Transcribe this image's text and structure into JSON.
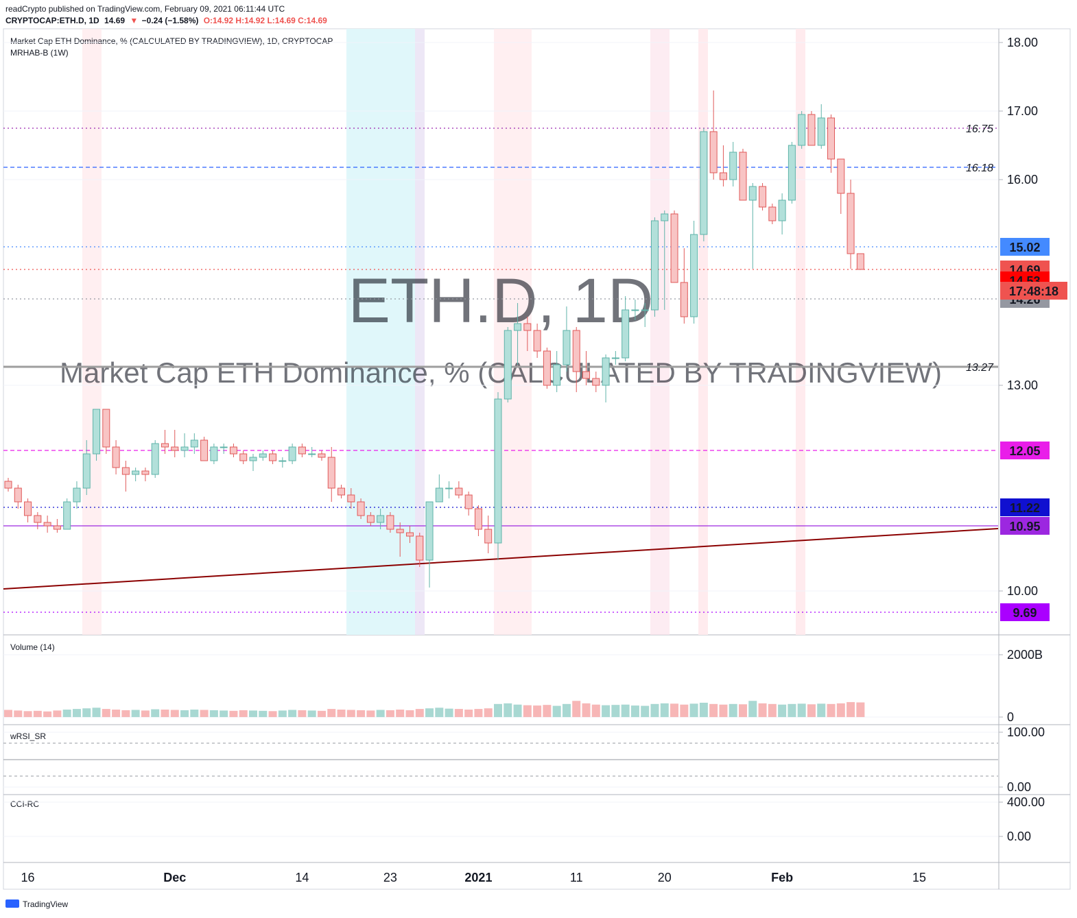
{
  "header": {
    "publisher": "readCrypto published on TradingView.com, February 09, 2021 06:11:44 UTC",
    "symbol": "CRYPTOCAP:ETH.D, 1D",
    "last": "14.69",
    "arrow": "▼",
    "change": "−0.24 (−1.58%)",
    "ohlc": "O:14.92 H:14.92 L:14.69 C:14.69"
  },
  "footer": "TradingView",
  "chart_data": {
    "type": "candlestick",
    "title": "Market Cap ETH Dominance, % (CALCULATED BY TRADINGVIEW), 1D, CRYPTOCAP",
    "indicator": "MRHAB-B (1W)",
    "watermark": "ETH.D, 1D",
    "watermark_sub": "Market Cap ETH Dominance, % (CALCULATED BY TRADINGVIEW)",
    "up_color": "#5fb3a9",
    "down_color": "#e05a5a",
    "ylim": [
      9.37,
      18.2
    ],
    "yticks": [
      {
        "value": 18,
        "label": "18.00"
      },
      {
        "value": 17,
        "label": "17.00"
      },
      {
        "value": 16,
        "label": "16.00"
      },
      {
        "value": 13,
        "label": "13.00"
      },
      {
        "value": 10,
        "label": "10.00"
      }
    ],
    "xlabels": [
      "16",
      "Dec",
      "14",
      "23",
      "2021",
      "11",
      "20",
      "Feb",
      "15"
    ],
    "countdown": "17:48:18",
    "trendline": {
      "start": 10.03,
      "end": 10.91,
      "color": "#8b0000"
    },
    "levels": [
      {
        "value": 16.75,
        "color": "#9c27b0",
        "style": "dotted",
        "inline": true
      },
      {
        "value": 16.18,
        "color": "#2962ff",
        "style": "dashed",
        "inline": true
      },
      {
        "value": 15.02,
        "color": "#448aff",
        "style": "dotted",
        "badge": true
      },
      {
        "value": 14.69,
        "color": "#ef5350",
        "style": "dotted",
        "badge": true
      },
      {
        "value": 14.53,
        "color": "#ff0000",
        "style": "none",
        "badge": true
      },
      {
        "value": 14.26,
        "color": "#9598a1",
        "style": "dotted",
        "badge": true
      },
      {
        "value": 13.27,
        "color": "#9e9e9e",
        "style": "solid",
        "inline": true
      },
      {
        "value": 12.05,
        "color": "#e91ee9",
        "style": "dashed",
        "badge": true
      },
      {
        "value": 11.22,
        "color": "#1010d0",
        "style": "dotted",
        "badge": true
      },
      {
        "value": 10.95,
        "color": "#9c27e0",
        "style": "solid",
        "badge": true
      },
      {
        "value": 9.69,
        "color": "#aa00ff",
        "style": "dotted",
        "badge": true
      }
    ],
    "candles": [
      [
        11.6,
        11.65,
        11.45,
        11.5
      ],
      [
        11.5,
        11.55,
        11.2,
        11.3
      ],
      [
        11.3,
        11.35,
        11.0,
        11.1
      ],
      [
        11.1,
        11.15,
        10.9,
        11.0
      ],
      [
        11.0,
        11.1,
        10.85,
        10.95
      ],
      [
        10.95,
        11.05,
        10.85,
        10.9
      ],
      [
        10.9,
        11.35,
        10.9,
        11.3
      ],
      [
        11.3,
        11.6,
        11.2,
        11.5
      ],
      [
        11.5,
        12.2,
        11.4,
        12.0
      ],
      [
        12.0,
        12.65,
        11.9,
        12.65
      ],
      [
        12.65,
        12.65,
        12.0,
        12.1
      ],
      [
        12.1,
        12.2,
        11.7,
        11.8
      ],
      [
        11.8,
        11.9,
        11.45,
        11.7
      ],
      [
        11.7,
        11.8,
        11.6,
        11.75
      ],
      [
        11.75,
        11.8,
        11.6,
        11.7
      ],
      [
        11.7,
        12.2,
        11.65,
        12.15
      ],
      [
        12.15,
        12.35,
        12.0,
        12.1
      ],
      [
        12.1,
        12.35,
        11.95,
        12.05
      ],
      [
        12.05,
        12.3,
        11.95,
        12.1
      ],
      [
        12.1,
        12.3,
        12.0,
        12.2
      ],
      [
        12.2,
        12.25,
        11.9,
        11.9
      ],
      [
        11.9,
        12.15,
        11.85,
        12.1
      ],
      [
        12.1,
        12.15,
        12.0,
        12.1
      ],
      [
        12.1,
        12.15,
        11.95,
        12.0
      ],
      [
        12.0,
        12.05,
        11.85,
        11.9
      ],
      [
        11.9,
        12.0,
        11.75,
        11.95
      ],
      [
        11.95,
        12.05,
        11.9,
        12.0
      ],
      [
        12.0,
        12.05,
        11.85,
        11.9
      ],
      [
        11.9,
        11.95,
        11.8,
        11.9
      ],
      [
        11.9,
        12.15,
        11.85,
        12.1
      ],
      [
        12.1,
        12.15,
        11.95,
        12.0
      ],
      [
        12.0,
        12.1,
        11.95,
        12.0
      ],
      [
        12.0,
        12.05,
        11.9,
        11.95
      ],
      [
        11.95,
        12.1,
        11.3,
        11.5
      ],
      [
        11.5,
        11.55,
        11.35,
        11.4
      ],
      [
        11.4,
        11.5,
        11.2,
        11.3
      ],
      [
        11.3,
        11.35,
        11.05,
        11.1
      ],
      [
        11.1,
        11.15,
        10.95,
        11.0
      ],
      [
        11.0,
        11.2,
        10.9,
        11.1
      ],
      [
        11.1,
        11.15,
        10.85,
        10.9
      ],
      [
        10.9,
        11.0,
        10.5,
        10.85
      ],
      [
        10.85,
        10.95,
        10.7,
        10.8
      ],
      [
        10.8,
        10.85,
        10.35,
        10.45
      ],
      [
        10.45,
        11.3,
        10.05,
        11.3
      ],
      [
        11.3,
        11.7,
        11.3,
        11.5
      ],
      [
        11.5,
        11.6,
        11.35,
        11.5
      ],
      [
        11.5,
        11.6,
        11.35,
        11.4
      ],
      [
        11.4,
        11.45,
        11.1,
        11.2
      ],
      [
        11.2,
        11.25,
        10.8,
        10.9
      ],
      [
        10.9,
        11.1,
        10.55,
        10.7
      ],
      [
        10.7,
        12.9,
        10.45,
        12.8
      ],
      [
        12.8,
        13.85,
        12.75,
        13.8
      ],
      [
        13.8,
        14.2,
        13.3,
        13.9
      ],
      [
        13.9,
        14.0,
        13.5,
        13.8
      ],
      [
        13.8,
        13.9,
        13.4,
        13.5
      ],
      [
        13.5,
        13.55,
        12.95,
        13.0
      ],
      [
        13.0,
        13.5,
        12.9,
        13.3
      ],
      [
        13.3,
        14.15,
        13.2,
        13.8
      ],
      [
        13.8,
        13.85,
        12.9,
        13.2
      ],
      [
        13.2,
        13.5,
        13.0,
        13.1
      ],
      [
        13.1,
        13.2,
        12.9,
        13.0
      ],
      [
        13.0,
        13.45,
        12.75,
        13.4
      ],
      [
        13.4,
        13.5,
        13.3,
        13.4
      ],
      [
        13.4,
        14.3,
        13.35,
        14.1
      ],
      [
        14.1,
        14.25,
        13.95,
        14.1
      ],
      [
        14.1,
        14.2,
        13.85,
        14.1
      ],
      [
        14.1,
        15.45,
        14.0,
        15.4
      ],
      [
        15.4,
        15.55,
        14.1,
        15.5
      ],
      [
        15.5,
        15.55,
        14.5,
        14.5
      ],
      [
        14.5,
        15.0,
        13.9,
        14.0
      ],
      [
        14.0,
        15.4,
        13.9,
        15.2
      ],
      [
        15.2,
        16.75,
        15.1,
        16.7
      ],
      [
        16.7,
        17.3,
        16.0,
        16.1
      ],
      [
        16.1,
        16.5,
        15.9,
        16.0
      ],
      [
        16.0,
        16.55,
        15.9,
        16.4
      ],
      [
        16.4,
        16.45,
        15.7,
        15.7
      ],
      [
        15.7,
        15.95,
        14.7,
        15.9
      ],
      [
        15.9,
        15.95,
        15.55,
        15.6
      ],
      [
        15.6,
        15.65,
        15.35,
        15.4
      ],
      [
        15.4,
        15.8,
        15.2,
        15.7
      ],
      [
        15.7,
        16.55,
        15.65,
        16.5
      ],
      [
        16.5,
        17.0,
        16.45,
        16.95
      ],
      [
        16.95,
        17.0,
        16.5,
        16.5
      ],
      [
        16.5,
        17.1,
        16.45,
        16.9
      ],
      [
        16.9,
        16.95,
        16.1,
        16.3
      ],
      [
        16.3,
        16.3,
        15.5,
        15.8
      ],
      [
        15.8,
        16.0,
        14.7,
        14.92
      ],
      [
        14.92,
        14.92,
        14.69,
        14.69
      ]
    ],
    "volume": {
      "title": "Volume (14)",
      "ylim": [
        -200,
        2550
      ],
      "yticks": [
        {
          "value": 2000,
          "label": "2000B"
        },
        0
      ],
      "values": [
        230,
        210,
        190,
        200,
        180,
        210,
        240,
        260,
        280,
        300,
        260,
        240,
        220,
        230,
        210,
        250,
        240,
        230,
        220,
        240,
        230,
        220,
        210,
        200,
        220,
        210,
        200,
        190,
        210,
        230,
        220,
        210,
        200,
        260,
        240,
        230,
        220,
        210,
        230,
        220,
        240,
        220,
        260,
        280,
        300,
        270,
        260,
        240,
        260,
        280,
        420,
        440,
        400,
        380,
        370,
        390,
        360,
        420,
        520,
        440,
        400,
        380,
        390,
        400,
        370,
        360,
        420,
        440,
        430,
        400,
        430,
        460,
        420,
        400,
        420,
        410,
        520,
        440,
        420,
        400,
        420,
        430,
        410,
        430,
        420,
        440,
        480,
        470
      ]
    },
    "rsi": {
      "title": "wRSI_SR",
      "ylim": [
        -12.5,
        110
      ],
      "yticks": [
        {
          "value": 100,
          "label": "100.00"
        },
        {
          "value": 0,
          "label": "0.00"
        }
      ],
      "levels": [
        20,
        50,
        80
      ]
    },
    "cci": {
      "title": "CCI-RC",
      "ylim": [
        -296,
        480
      ],
      "yticks": [
        {
          "value": 400,
          "label": "400.00"
        },
        {
          "value": 0,
          "label": "0.00"
        }
      ]
    }
  }
}
